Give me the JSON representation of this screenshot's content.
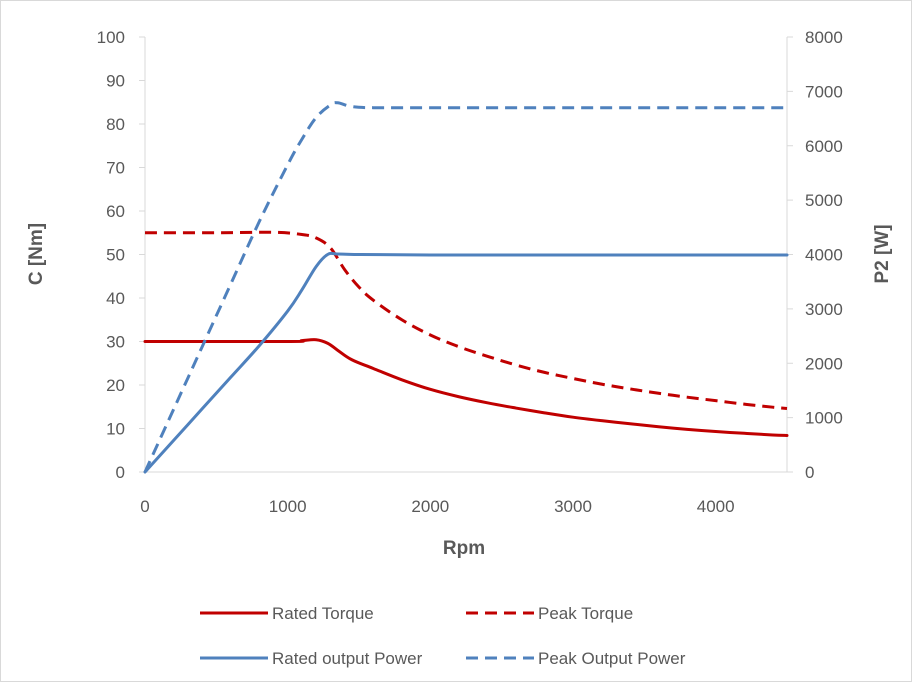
{
  "chart_data": {
    "type": "line",
    "title": "",
    "xlabel": "Rpm",
    "ylabel_left": "C [Nm]",
    "ylabel_right": "P2 [W]",
    "xlim": [
      0,
      4500
    ],
    "ylim_left": [
      0,
      100
    ],
    "ylim_right": [
      0,
      8000
    ],
    "x_ticks": [
      0,
      1000,
      2000,
      3000,
      4000
    ],
    "y_ticks_left": [
      0,
      10,
      20,
      30,
      40,
      50,
      60,
      70,
      80,
      90,
      100
    ],
    "y_ticks_right": [
      0,
      1000,
      2000,
      3000,
      4000,
      5000,
      6000,
      7000,
      8000
    ],
    "grid": false,
    "legend_position": "bottom",
    "colors": {
      "torque": "#c00000",
      "power": "#4f81bd"
    },
    "series": [
      {
        "name": "Rated Torque",
        "axis": "left",
        "style": "solid",
        "color": "#c00000",
        "points": [
          [
            0,
            30
          ],
          [
            1000,
            30
          ],
          [
            1100,
            30.2
          ],
          [
            1200,
            30.4
          ],
          [
            1280,
            29.6
          ],
          [
            1350,
            28
          ],
          [
            1450,
            25.8
          ],
          [
            1600,
            23.8
          ],
          [
            1800,
            21.2
          ],
          [
            2000,
            19
          ],
          [
            2200,
            17.3
          ],
          [
            2400,
            15.9
          ],
          [
            2600,
            14.7
          ],
          [
            2800,
            13.6
          ],
          [
            3000,
            12.6
          ],
          [
            3200,
            11.8
          ],
          [
            3400,
            11.1
          ],
          [
            3600,
            10.4
          ],
          [
            3800,
            9.8
          ],
          [
            4000,
            9.3
          ],
          [
            4200,
            8.9
          ],
          [
            4400,
            8.5
          ],
          [
            4500,
            8.4
          ]
        ]
      },
      {
        "name": "Peak Torque",
        "axis": "left",
        "style": "dashed",
        "color": "#c00000",
        "points": [
          [
            0,
            55
          ],
          [
            500,
            55
          ],
          [
            900,
            55.1
          ],
          [
            1100,
            54.6
          ],
          [
            1200,
            53.8
          ],
          [
            1300,
            51.5
          ],
          [
            1400,
            46.5
          ],
          [
            1500,
            42.5
          ],
          [
            1600,
            39.5
          ],
          [
            1800,
            35
          ],
          [
            2000,
            31.5
          ],
          [
            2200,
            28.8
          ],
          [
            2400,
            26.6
          ],
          [
            2600,
            24.6
          ],
          [
            2800,
            22.9
          ],
          [
            3000,
            21.5
          ],
          [
            3200,
            20.2
          ],
          [
            3400,
            19.1
          ],
          [
            3600,
            18.1
          ],
          [
            3800,
            17.2
          ],
          [
            4000,
            16.4
          ],
          [
            4200,
            15.6
          ],
          [
            4400,
            14.9
          ],
          [
            4500,
            14.6
          ]
        ]
      },
      {
        "name": "Rated output Power",
        "axis": "right",
        "style": "solid",
        "color": "#4f81bd",
        "points": [
          [
            0,
            0
          ],
          [
            200,
            580
          ],
          [
            400,
            1160
          ],
          [
            600,
            1740
          ],
          [
            800,
            2320
          ],
          [
            1000,
            2960
          ],
          [
            1100,
            3350
          ],
          [
            1200,
            3780
          ],
          [
            1280,
            4000
          ],
          [
            1350,
            4010
          ],
          [
            1500,
            4000
          ],
          [
            2000,
            3990
          ],
          [
            3000,
            3990
          ],
          [
            4000,
            3990
          ],
          [
            4500,
            3990
          ]
        ]
      },
      {
        "name": "Peak Output Power",
        "axis": "right",
        "style": "dashed",
        "color": "#4f81bd",
        "points": [
          [
            0,
            0
          ],
          [
            200,
            1150
          ],
          [
            400,
            2300
          ],
          [
            600,
            3450
          ],
          [
            800,
            4600
          ],
          [
            1000,
            5650
          ],
          [
            1100,
            6120
          ],
          [
            1200,
            6520
          ],
          [
            1300,
            6750
          ],
          [
            1350,
            6790
          ],
          [
            1450,
            6720
          ],
          [
            1600,
            6700
          ],
          [
            2000,
            6700
          ],
          [
            3000,
            6700
          ],
          [
            4000,
            6700
          ],
          [
            4500,
            6700
          ]
        ]
      }
    ]
  }
}
